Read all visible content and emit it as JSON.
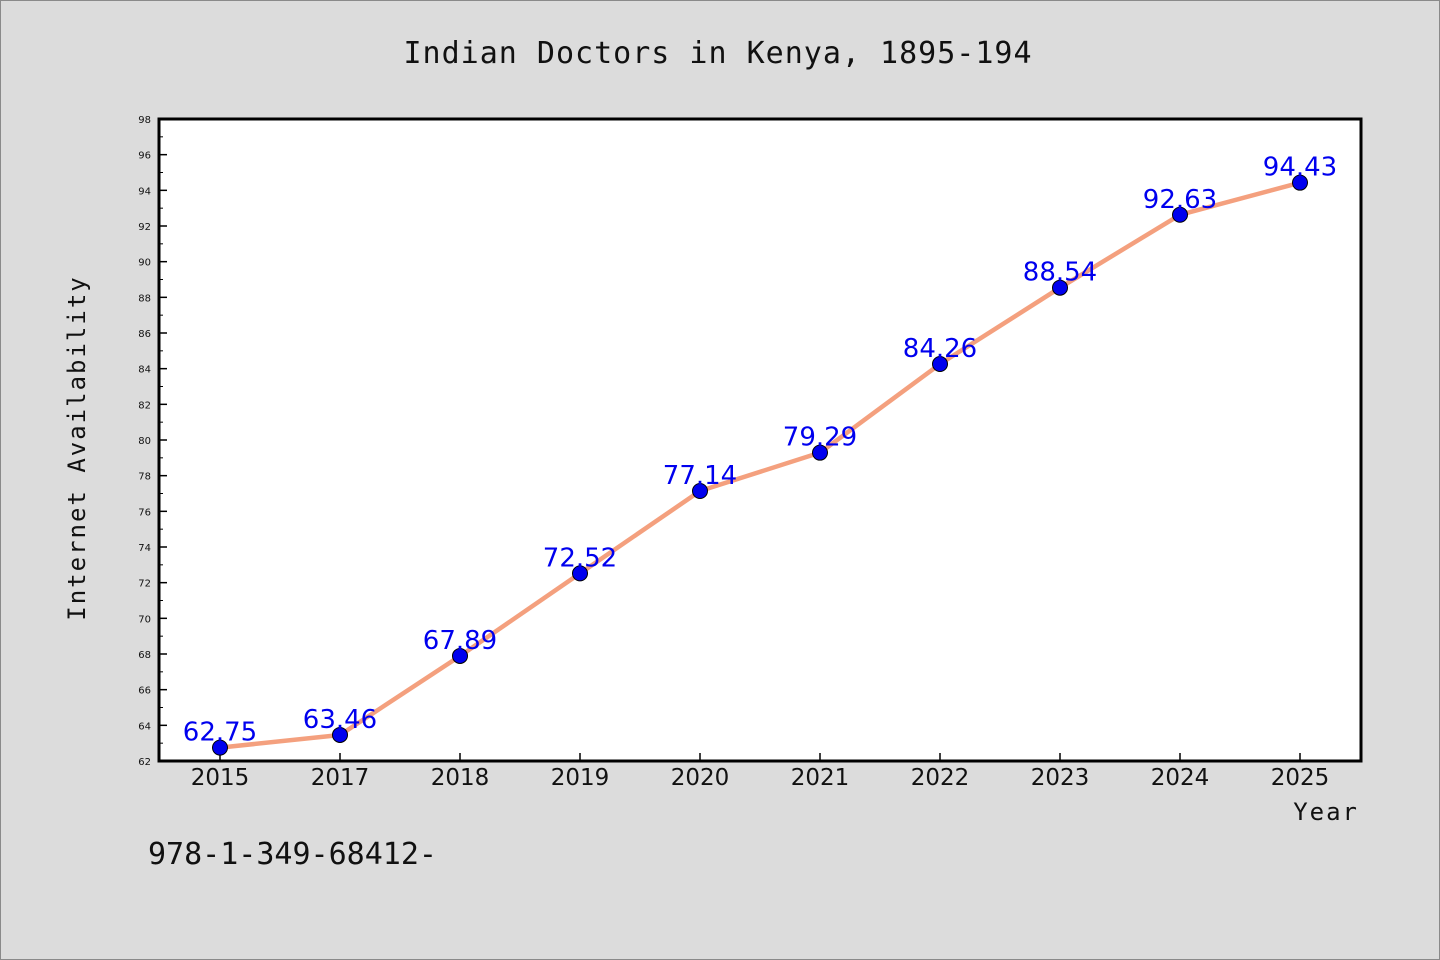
{
  "chart_data": {
    "type": "line",
    "title": "Indian Doctors in Kenya, 1895-194",
    "xlabel": "Year",
    "ylabel": "Internet Availability",
    "categories": [
      "2015",
      "2017",
      "2018",
      "2019",
      "2020",
      "2021",
      "2022",
      "2023",
      "2024",
      "2025"
    ],
    "values": [
      62.75,
      63.46,
      67.89,
      72.52,
      77.14,
      79.29,
      84.26,
      88.54,
      92.63,
      94.43
    ],
    "data_labels": [
      "62.75",
      "63.46",
      "67.89",
      "72.52",
      "77.14",
      "79.29",
      "84.26",
      "88.54",
      "92.63",
      "94.43"
    ],
    "ylim": [
      62,
      98
    ],
    "yticks": [
      62,
      64,
      66,
      68,
      70,
      72,
      74,
      76,
      78,
      80,
      82,
      84,
      86,
      88,
      90,
      92,
      94,
      96,
      98
    ],
    "grid": false,
    "legend": "none",
    "colors": {
      "line": "#f4a07e",
      "marker": "#0000ee",
      "data_label": "#0000ee",
      "background": "#dcdcdc",
      "plot_area": "#ffffff"
    }
  },
  "footer_text": "978-1-349-68412-"
}
